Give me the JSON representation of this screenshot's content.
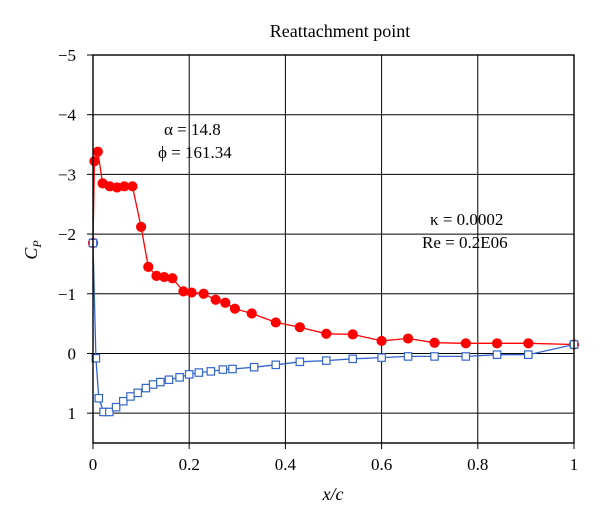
{
  "chart_data": {
    "type": "line",
    "title": "Reattachment point",
    "xlabel": "x/c",
    "ylabel": "C",
    "ylabel_sub": "P",
    "xlim": [
      0,
      1
    ],
    "ylim": [
      1.5,
      -5
    ],
    "y_inverted": true,
    "grid": true,
    "x_ticks": [
      0,
      0.2,
      0.4,
      0.6,
      0.8,
      1
    ],
    "x_tick_labels": [
      "0",
      "0.2",
      "0.4",
      "0.6",
      "0.8",
      "1"
    ],
    "y_ticks": [
      -5,
      -4,
      -3,
      -2,
      -1,
      0,
      1
    ],
    "y_tick_labels": [
      "−5",
      "−4",
      "−3",
      "−2",
      "−1",
      "0",
      "1"
    ],
    "annotations": [
      {
        "lines": [
          "α = 14.8",
          "ϕ = 161.34"
        ]
      },
      {
        "lines": [
          "κ = 0.0002",
          "Re = 0.2E06"
        ]
      }
    ],
    "series": [
      {
        "color": "#ff0000",
        "marker": "circle",
        "x": [
          0.0,
          0.003,
          0.01,
          0.02,
          0.035,
          0.05,
          0.065,
          0.082,
          0.1,
          0.115,
          0.132,
          0.148,
          0.165,
          0.188,
          0.205,
          0.23,
          0.255,
          0.275,
          0.295,
          0.33,
          0.38,
          0.43,
          0.485,
          0.54,
          0.6,
          0.655,
          0.71,
          0.775,
          0.84,
          0.905,
          1.0
        ],
        "y": [
          -1.85,
          -3.22,
          -3.38,
          -2.85,
          -2.8,
          -2.78,
          -2.8,
          -2.8,
          -2.12,
          -1.45,
          -1.3,
          -1.28,
          -1.26,
          -1.04,
          -1.02,
          -1.0,
          -0.9,
          -0.85,
          -0.75,
          -0.67,
          -0.52,
          -0.44,
          -0.33,
          -0.32,
          -0.21,
          -0.25,
          -0.18,
          -0.17,
          -0.17,
          -0.17,
          -0.15
        ]
      },
      {
        "color": "#3366cc",
        "marker": "square",
        "x": [
          0.0,
          0.006,
          0.012,
          0.022,
          0.034,
          0.048,
          0.063,
          0.078,
          0.093,
          0.11,
          0.125,
          0.14,
          0.158,
          0.18,
          0.2,
          0.22,
          0.245,
          0.27,
          0.29,
          0.335,
          0.38,
          0.43,
          0.485,
          0.54,
          0.6,
          0.655,
          0.71,
          0.775,
          0.84,
          0.905,
          1.0
        ],
        "y": [
          -1.85,
          0.08,
          0.75,
          0.98,
          0.98,
          0.9,
          0.8,
          0.72,
          0.66,
          0.58,
          0.52,
          0.48,
          0.44,
          0.4,
          0.35,
          0.32,
          0.3,
          0.27,
          0.26,
          0.23,
          0.19,
          0.14,
          0.12,
          0.09,
          0.07,
          0.05,
          0.05,
          0.05,
          0.02,
          0.02,
          -0.15
        ]
      }
    ]
  }
}
